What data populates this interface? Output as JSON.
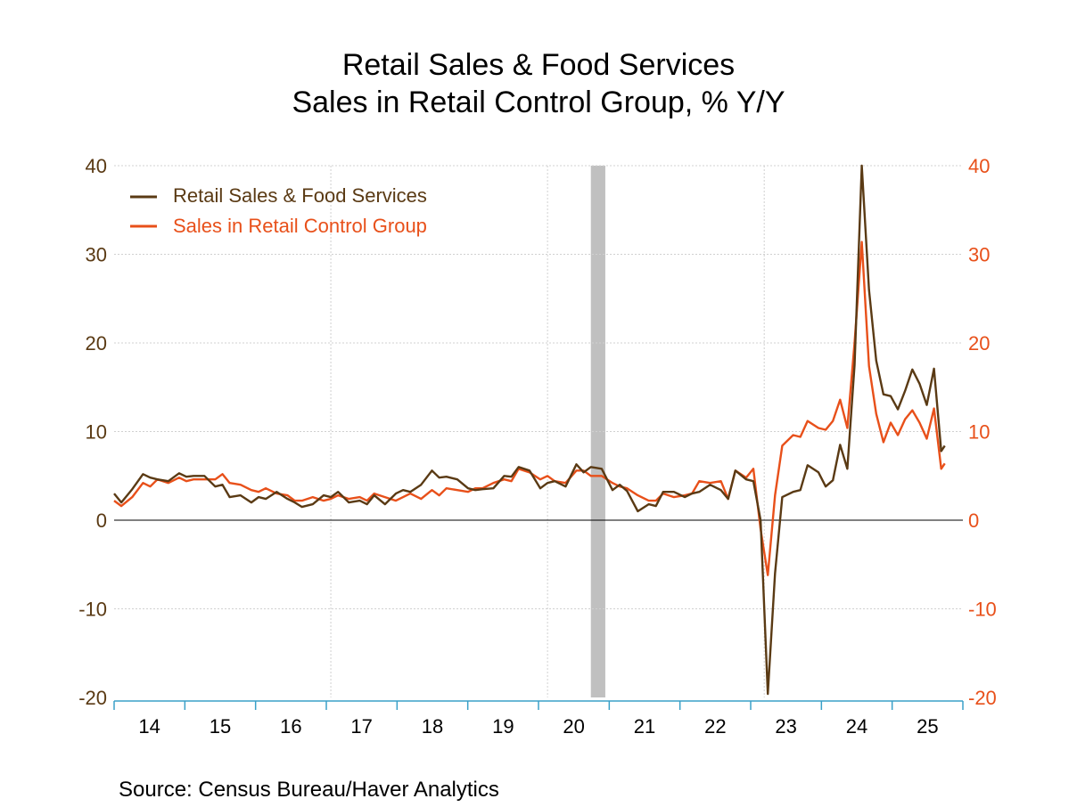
{
  "chart_data": {
    "type": "line",
    "title": "Retail Sales & Food Services",
    "subtitle": "Sales in Retail Control Group, % Y/Y",
    "source": "Source:  Census Bureau/Haver Analytics",
    "ylim": [
      -20,
      40
    ],
    "yticks": [
      -20,
      -10,
      0,
      10,
      20,
      30,
      40
    ],
    "y_tick_labels": [
      "-20",
      "-10",
      "0",
      "10",
      "20",
      "30",
      "40"
    ],
    "xlim": [
      2013.5,
      2025.25
    ],
    "x_tick_labels": [
      "14",
      "15",
      "16",
      "17",
      "18",
      "19",
      "20",
      "21",
      "22",
      "23",
      "24",
      "25"
    ],
    "recession": [
      2020.1,
      2020.3
    ],
    "colors": {
      "retail": "#5a3a14",
      "control": "#e8501a",
      "recession": "#c0c0c0",
      "axis": "#3aa0c8",
      "grid": "#d0d0d0"
    },
    "series": [
      {
        "name": "Retail Sales & Food Services",
        "color": "#5a3a14",
        "points": [
          [
            2013.5,
            3.0
          ],
          [
            2013.6,
            2.0
          ],
          [
            2013.75,
            3.5
          ],
          [
            2013.9,
            5.2
          ],
          [
            2014.0,
            4.8
          ],
          [
            2014.1,
            4.6
          ],
          [
            2014.25,
            4.4
          ],
          [
            2014.4,
            5.3
          ],
          [
            2014.5,
            4.9
          ],
          [
            2014.6,
            5.0
          ],
          [
            2014.75,
            5.0
          ],
          [
            2014.9,
            3.8
          ],
          [
            2015.0,
            4.0
          ],
          [
            2015.1,
            2.6
          ],
          [
            2015.25,
            2.8
          ],
          [
            2015.4,
            2.0
          ],
          [
            2015.5,
            2.6
          ],
          [
            2015.6,
            2.4
          ],
          [
            2015.75,
            3.2
          ],
          [
            2015.9,
            2.4
          ],
          [
            2016.0,
            2.0
          ],
          [
            2016.1,
            1.5
          ],
          [
            2016.25,
            1.8
          ],
          [
            2016.4,
            2.8
          ],
          [
            2016.5,
            2.6
          ],
          [
            2016.6,
            3.2
          ],
          [
            2016.75,
            2.0
          ],
          [
            2016.9,
            2.2
          ],
          [
            2017.0,
            1.8
          ],
          [
            2017.1,
            2.8
          ],
          [
            2017.25,
            1.8
          ],
          [
            2017.4,
            3.0
          ],
          [
            2017.5,
            3.4
          ],
          [
            2017.6,
            3.2
          ],
          [
            2017.75,
            4.0
          ],
          [
            2017.9,
            5.6
          ],
          [
            2018.0,
            4.8
          ],
          [
            2018.1,
            4.9
          ],
          [
            2018.25,
            4.6
          ],
          [
            2018.4,
            3.6
          ],
          [
            2018.5,
            3.4
          ],
          [
            2018.6,
            3.5
          ],
          [
            2018.75,
            3.6
          ],
          [
            2018.9,
            5.0
          ],
          [
            2019.0,
            4.9
          ],
          [
            2019.1,
            6.0
          ],
          [
            2019.25,
            5.6
          ],
          [
            2019.4,
            3.6
          ],
          [
            2019.5,
            4.2
          ],
          [
            2019.6,
            4.4
          ],
          [
            2019.75,
            3.8
          ],
          [
            2019.9,
            6.3
          ],
          [
            2020.0,
            5.4
          ],
          [
            2020.1,
            6.0
          ],
          [
            2020.25,
            5.8
          ],
          [
            2020.4,
            3.4
          ],
          [
            2020.5,
            4.0
          ],
          [
            2020.6,
            3.3
          ],
          [
            2020.75,
            1.0
          ],
          [
            2020.9,
            1.8
          ],
          [
            2021.0,
            1.6
          ],
          [
            2021.1,
            3.2
          ],
          [
            2021.25,
            3.2
          ],
          [
            2021.4,
            2.6
          ],
          [
            2021.5,
            3.0
          ],
          [
            2021.6,
            3.2
          ],
          [
            2021.75,
            4.0
          ],
          [
            2021.9,
            3.4
          ],
          [
            2022.0,
            2.4
          ],
          [
            2022.1,
            5.6
          ],
          [
            2022.25,
            4.6
          ],
          [
            2022.35,
            4.4
          ],
          [
            2022.45,
            0.0
          ],
          [
            2022.55,
            -19.6
          ],
          [
            2022.65,
            -6.0
          ],
          [
            2022.75,
            2.6
          ],
          [
            2022.9,
            3.2
          ],
          [
            2023.0,
            3.4
          ],
          [
            2023.1,
            6.2
          ],
          [
            2023.25,
            5.4
          ],
          [
            2023.35,
            3.8
          ],
          [
            2023.45,
            4.5
          ],
          [
            2023.55,
            8.5
          ],
          [
            2023.65,
            5.8
          ],
          [
            2023.75,
            17.5
          ],
          [
            2023.85,
            41.0
          ],
          [
            2023.95,
            26.0
          ],
          [
            2024.05,
            18.0
          ],
          [
            2024.15,
            14.2
          ],
          [
            2024.25,
            14.0
          ],
          [
            2024.35,
            12.5
          ],
          [
            2024.45,
            14.6
          ],
          [
            2024.55,
            17.0
          ],
          [
            2024.65,
            15.4
          ],
          [
            2024.75,
            13.0
          ],
          [
            2024.85,
            17.1
          ],
          [
            2024.95,
            7.8
          ],
          [
            2025.0,
            8.4
          ]
        ]
      },
      {
        "name": "Sales in Retail Control Group",
        "color": "#e8501a",
        "points": [
          [
            2013.5,
            2.2
          ],
          [
            2013.6,
            1.6
          ],
          [
            2013.75,
            2.6
          ],
          [
            2013.9,
            4.2
          ],
          [
            2014.0,
            3.8
          ],
          [
            2014.1,
            4.6
          ],
          [
            2014.25,
            4.2
          ],
          [
            2014.4,
            4.8
          ],
          [
            2014.5,
            4.4
          ],
          [
            2014.6,
            4.6
          ],
          [
            2014.75,
            4.6
          ],
          [
            2014.9,
            4.6
          ],
          [
            2015.0,
            5.2
          ],
          [
            2015.1,
            4.2
          ],
          [
            2015.25,
            4.0
          ],
          [
            2015.4,
            3.4
          ],
          [
            2015.5,
            3.2
          ],
          [
            2015.6,
            3.6
          ],
          [
            2015.75,
            3.0
          ],
          [
            2015.9,
            2.8
          ],
          [
            2016.0,
            2.2
          ],
          [
            2016.1,
            2.2
          ],
          [
            2016.25,
            2.6
          ],
          [
            2016.4,
            2.2
          ],
          [
            2016.5,
            2.4
          ],
          [
            2016.6,
            2.8
          ],
          [
            2016.75,
            2.4
          ],
          [
            2016.9,
            2.6
          ],
          [
            2017.0,
            2.2
          ],
          [
            2017.1,
            3.0
          ],
          [
            2017.25,
            2.6
          ],
          [
            2017.4,
            2.2
          ],
          [
            2017.5,
            2.6
          ],
          [
            2017.6,
            3.0
          ],
          [
            2017.75,
            2.4
          ],
          [
            2017.9,
            3.4
          ],
          [
            2018.0,
            2.8
          ],
          [
            2018.1,
            3.6
          ],
          [
            2018.25,
            3.4
          ],
          [
            2018.4,
            3.2
          ],
          [
            2018.5,
            3.6
          ],
          [
            2018.6,
            3.6
          ],
          [
            2018.75,
            4.2
          ],
          [
            2018.9,
            4.6
          ],
          [
            2019.0,
            4.4
          ],
          [
            2019.1,
            5.8
          ],
          [
            2019.25,
            5.4
          ],
          [
            2019.4,
            4.6
          ],
          [
            2019.5,
            5.0
          ],
          [
            2019.6,
            4.4
          ],
          [
            2019.75,
            4.2
          ],
          [
            2019.9,
            5.6
          ],
          [
            2020.0,
            5.6
          ],
          [
            2020.1,
            5.0
          ],
          [
            2020.25,
            5.0
          ],
          [
            2020.4,
            4.2
          ],
          [
            2020.5,
            3.8
          ],
          [
            2020.6,
            3.6
          ],
          [
            2020.75,
            2.8
          ],
          [
            2020.9,
            2.2
          ],
          [
            2021.0,
            2.2
          ],
          [
            2021.1,
            3.0
          ],
          [
            2021.25,
            2.6
          ],
          [
            2021.4,
            2.8
          ],
          [
            2021.5,
            3.0
          ],
          [
            2021.6,
            4.4
          ],
          [
            2021.75,
            4.2
          ],
          [
            2021.9,
            4.4
          ],
          [
            2022.0,
            2.4
          ],
          [
            2022.1,
            5.6
          ],
          [
            2022.25,
            4.8
          ],
          [
            2022.35,
            5.8
          ],
          [
            2022.45,
            -1.0
          ],
          [
            2022.55,
            -6.2
          ],
          [
            2022.65,
            2.8
          ],
          [
            2022.75,
            8.4
          ],
          [
            2022.9,
            9.6
          ],
          [
            2023.0,
            9.4
          ],
          [
            2023.1,
            11.2
          ],
          [
            2023.25,
            10.4
          ],
          [
            2023.35,
            10.2
          ],
          [
            2023.45,
            11.2
          ],
          [
            2023.55,
            13.6
          ],
          [
            2023.65,
            10.4
          ],
          [
            2023.75,
            20.0
          ],
          [
            2023.85,
            31.4
          ],
          [
            2023.95,
            17.4
          ],
          [
            2024.05,
            12.0
          ],
          [
            2024.15,
            8.8
          ],
          [
            2024.25,
            11.0
          ],
          [
            2024.35,
            9.6
          ],
          [
            2024.45,
            11.4
          ],
          [
            2024.55,
            12.4
          ],
          [
            2024.65,
            11.0
          ],
          [
            2024.75,
            9.2
          ],
          [
            2024.85,
            12.6
          ],
          [
            2024.95,
            5.8
          ],
          [
            2025.0,
            6.4
          ]
        ]
      }
    ]
  }
}
